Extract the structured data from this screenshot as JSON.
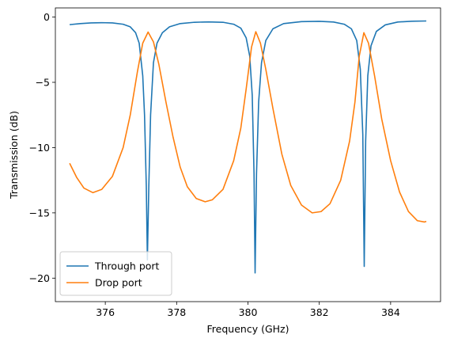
{
  "chart_data": {
    "type": "line",
    "xlabel": "Frequency (GHz)",
    "ylabel": "Transmission (dB)",
    "xlim": [
      374.6,
      385.4
    ],
    "ylim": [
      -21.8,
      0.7
    ],
    "xticks": [
      376,
      378,
      380,
      382,
      384
    ],
    "yticks": [
      0,
      -5,
      -10,
      -15,
      -20
    ],
    "grid": false,
    "legend_placement": "lower-left",
    "series": [
      {
        "name": "Through port",
        "color": "#1f77b4",
        "points": [
          [
            375.0,
            -0.58
          ],
          [
            375.3,
            -0.5
          ],
          [
            375.6,
            -0.45
          ],
          [
            375.9,
            -0.43
          ],
          [
            376.2,
            -0.45
          ],
          [
            376.5,
            -0.55
          ],
          [
            376.7,
            -0.75
          ],
          [
            376.85,
            -1.2
          ],
          [
            376.95,
            -2.0
          ],
          [
            377.05,
            -4.5
          ],
          [
            377.1,
            -7.5
          ],
          [
            377.15,
            -13.0
          ],
          [
            377.18,
            -18.6
          ],
          [
            377.22,
            -13.0
          ],
          [
            377.27,
            -7.5
          ],
          [
            377.35,
            -3.5
          ],
          [
            377.45,
            -2.0
          ],
          [
            377.6,
            -1.2
          ],
          [
            377.8,
            -0.75
          ],
          [
            378.1,
            -0.5
          ],
          [
            378.5,
            -0.4
          ],
          [
            378.9,
            -0.37
          ],
          [
            379.3,
            -0.4
          ],
          [
            379.6,
            -0.55
          ],
          [
            379.8,
            -0.85
          ],
          [
            379.95,
            -1.6
          ],
          [
            380.05,
            -3.0
          ],
          [
            380.12,
            -6.0
          ],
          [
            380.17,
            -12.0
          ],
          [
            380.2,
            -19.6
          ],
          [
            380.24,
            -12.0
          ],
          [
            380.3,
            -6.5
          ],
          [
            380.38,
            -3.5
          ],
          [
            380.5,
            -1.8
          ],
          [
            380.7,
            -0.9
          ],
          [
            381.0,
            -0.5
          ],
          [
            381.5,
            -0.35
          ],
          [
            382.0,
            -0.33
          ],
          [
            382.4,
            -0.38
          ],
          [
            382.7,
            -0.55
          ],
          [
            382.9,
            -0.9
          ],
          [
            383.05,
            -1.8
          ],
          [
            383.15,
            -4.0
          ],
          [
            383.22,
            -9.0
          ],
          [
            383.26,
            -19.1
          ],
          [
            383.3,
            -9.5
          ],
          [
            383.36,
            -4.5
          ],
          [
            383.45,
            -2.2
          ],
          [
            383.6,
            -1.1
          ],
          [
            383.85,
            -0.6
          ],
          [
            384.2,
            -0.38
          ],
          [
            384.6,
            -0.32
          ],
          [
            385.0,
            -0.3
          ]
        ]
      },
      {
        "name": "Drop port",
        "color": "#ff7f0e",
        "points": [
          [
            375.0,
            -11.2
          ],
          [
            375.2,
            -12.3
          ],
          [
            375.4,
            -13.1
          ],
          [
            375.65,
            -13.45
          ],
          [
            375.9,
            -13.2
          ],
          [
            376.2,
            -12.2
          ],
          [
            376.5,
            -10.0
          ],
          [
            376.7,
            -7.5
          ],
          [
            376.9,
            -4.2
          ],
          [
            377.05,
            -2.0
          ],
          [
            377.2,
            -1.15
          ],
          [
            377.35,
            -1.9
          ],
          [
            377.5,
            -3.6
          ],
          [
            377.7,
            -6.5
          ],
          [
            377.9,
            -9.2
          ],
          [
            378.1,
            -11.5
          ],
          [
            378.3,
            -13.0
          ],
          [
            378.55,
            -13.9
          ],
          [
            378.8,
            -14.15
          ],
          [
            379.0,
            -14.0
          ],
          [
            379.3,
            -13.2
          ],
          [
            379.6,
            -11.0
          ],
          [
            379.8,
            -8.5
          ],
          [
            379.95,
            -5.5
          ],
          [
            380.1,
            -2.3
          ],
          [
            380.22,
            -1.12
          ],
          [
            380.35,
            -2.0
          ],
          [
            380.5,
            -4.0
          ],
          [
            380.7,
            -7.0
          ],
          [
            380.95,
            -10.5
          ],
          [
            381.2,
            -12.9
          ],
          [
            381.5,
            -14.4
          ],
          [
            381.8,
            -15.0
          ],
          [
            382.05,
            -14.9
          ],
          [
            382.3,
            -14.3
          ],
          [
            382.6,
            -12.5
          ],
          [
            382.85,
            -9.5
          ],
          [
            383.0,
            -6.5
          ],
          [
            383.12,
            -3.0
          ],
          [
            383.25,
            -1.2
          ],
          [
            383.38,
            -2.0
          ],
          [
            383.55,
            -4.5
          ],
          [
            383.75,
            -7.8
          ],
          [
            384.0,
            -11.0
          ],
          [
            384.25,
            -13.4
          ],
          [
            384.5,
            -14.9
          ],
          [
            384.75,
            -15.6
          ],
          [
            384.95,
            -15.7
          ],
          [
            385.0,
            -15.65
          ]
        ]
      }
    ]
  }
}
